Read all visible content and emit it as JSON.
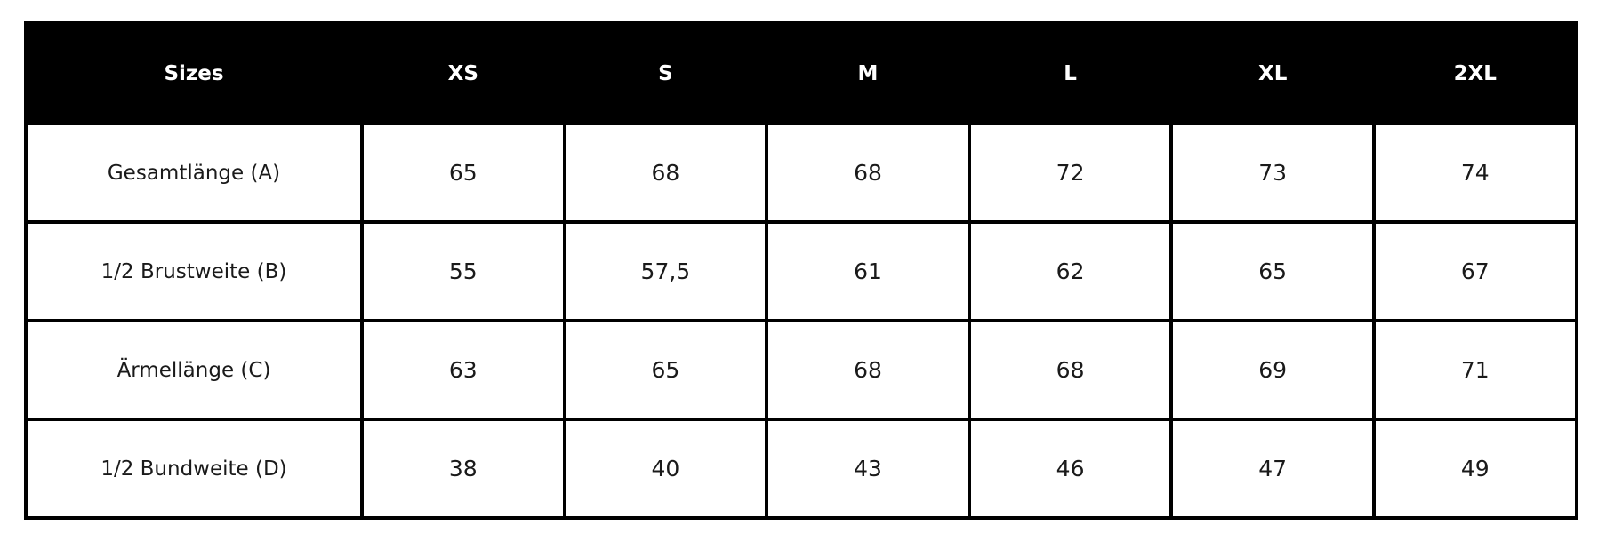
{
  "table": {
    "header": [
      "Sizes",
      "XS",
      "S",
      "M",
      "L",
      "XL",
      "2XL"
    ],
    "rows": [
      {
        "label": "Gesamtlänge (A)",
        "values": [
          "65",
          "68",
          "68",
          "72",
          "73",
          "74"
        ]
      },
      {
        "label": "1/2 Brustweite (B)",
        "values": [
          "55",
          "57,5",
          "61",
          "62",
          "65",
          "67"
        ]
      },
      {
        "label": "Ärmellänge (C)",
        "values": [
          "63",
          "65",
          "68",
          "68",
          "69",
          "71"
        ]
      },
      {
        "label": "1/2 Bundweite (D)",
        "values": [
          "38",
          "40",
          "43",
          "46",
          "47",
          "49"
        ]
      }
    ]
  },
  "colors": {
    "header_background": "#000000",
    "header_text": "#ffffff",
    "cell_background": "#ffffff",
    "cell_text": "#1a1a1a",
    "grid_lines": "#000000"
  }
}
